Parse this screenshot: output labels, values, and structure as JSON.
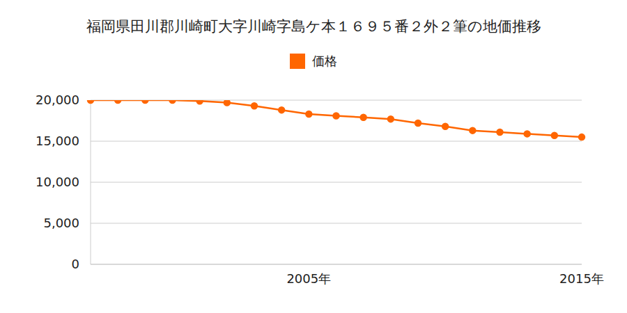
{
  "chart_data": {
    "type": "line",
    "title": "福岡県田川郡川崎町大字川崎字島ケ本１６９５番２外２筆の地価推移",
    "categories": [
      null,
      null,
      null,
      null,
      null,
      null,
      null,
      null,
      "2005年",
      null,
      null,
      null,
      null,
      null,
      null,
      null,
      null,
      null,
      "2015年"
    ],
    "series": [
      {
        "name": "価格",
        "color": "#ff6600",
        "marker": "circle",
        "values": [
          20000,
          20000,
          20000,
          20000,
          19900,
          19700,
          19300,
          18800,
          18300,
          18100,
          17900,
          17700,
          17200,
          16800,
          16300,
          16100,
          15900,
          15700,
          15500
        ]
      }
    ],
    "ylim": [
      0,
      20000
    ],
    "yticks": [
      0,
      {
        "value": 5000,
        "label": "5,000"
      },
      {
        "value": 10000,
        "label": "10,000"
      },
      {
        "value": 15000,
        "label": "15,000"
      },
      {
        "value": 20000,
        "label": "20,000"
      }
    ],
    "grid": true,
    "legend": "top"
  }
}
